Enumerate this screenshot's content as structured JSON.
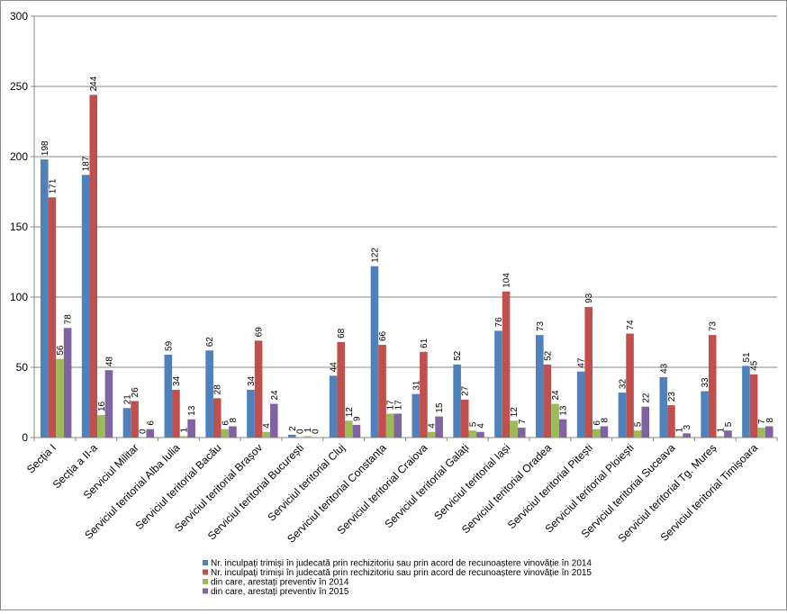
{
  "chart_data": {
    "type": "bar",
    "title": "",
    "xlabel": "",
    "ylabel": "",
    "ylim": [
      0,
      300
    ],
    "yticks": [
      0,
      50,
      100,
      150,
      200,
      250,
      300
    ],
    "grid": true,
    "legend_position": "bottom",
    "categories": [
      "Secția I",
      "Secția a II-a",
      "Serviciul Militar",
      "Serviciul teritorial Alba Iulia",
      "Serviciul teritorial Bacău",
      "Serviciul teritorial Brașov",
      "Serviciul teritorial București",
      "Serviciul teritorial Cluj",
      "Serviciul teritorial Constanța",
      "Serviciul teritorial Craiova",
      "Serviciul teritorial Galați",
      "Serviciul teritorial Iași",
      "Serviciul teritorial Oradea",
      "Serviciul teritorial Pitești",
      "Serviciul teritorial Ploiești",
      "Serviciul teritorial Suceava",
      "Serviciul teritorial Tg. Mureș",
      "Serviciul teritorial Timișoara"
    ],
    "series": [
      {
        "name": "Nr. inculpați trimiși în judecată prin rechizitoriu sau prin acord de recunoaștere vinovăție în 2014",
        "color": "#4f81bd",
        "values": [
          198,
          187,
          21,
          59,
          62,
          34,
          2,
          44,
          122,
          31,
          52,
          76,
          73,
          47,
          32,
          43,
          33,
          51
        ]
      },
      {
        "name": "Nr. inculpați trimiși în judecată prin rechizitoriu sau prin acord de recunoaștere vinovăție în 2015",
        "color": "#c0504d",
        "values": [
          171,
          244,
          26,
          34,
          28,
          69,
          0,
          68,
          66,
          61,
          27,
          104,
          52,
          93,
          74,
          23,
          73,
          45
        ]
      },
      {
        "name": "din care, arestați preventiv în 2014",
        "color": "#9bbb59",
        "values": [
          56,
          16,
          0,
          1,
          6,
          4,
          1,
          12,
          17,
          4,
          5,
          12,
          24,
          6,
          5,
          1,
          1,
          7
        ]
      },
      {
        "name": "din care, arestați preventiv în 2015",
        "color": "#8064a2",
        "values": [
          78,
          48,
          6,
          13,
          8,
          24,
          0,
          9,
          17,
          15,
          4,
          7,
          13,
          8,
          22,
          3,
          5,
          8
        ]
      }
    ]
  }
}
